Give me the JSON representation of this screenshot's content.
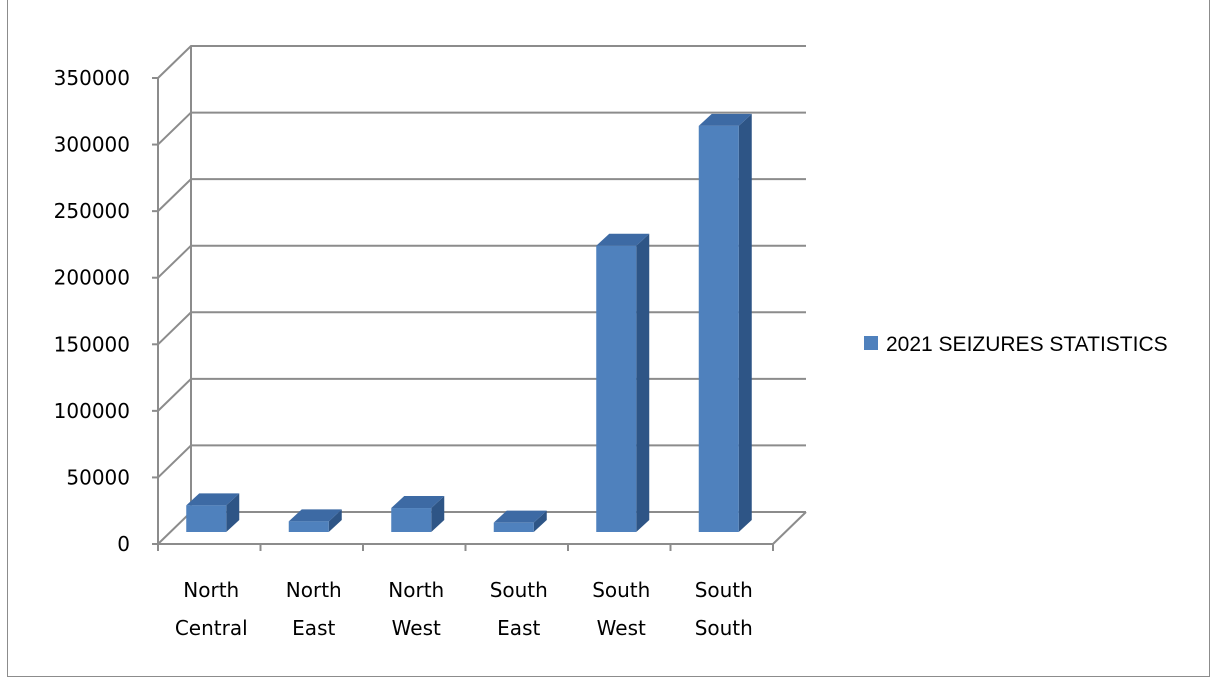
{
  "chart_data": {
    "type": "bar",
    "style": "3d-column",
    "categories": [
      [
        "North",
        "Central"
      ],
      [
        "North",
        "East"
      ],
      [
        "North",
        "West"
      ],
      [
        "South",
        "East"
      ],
      [
        "South",
        "West"
      ],
      [
        "South",
        "South"
      ]
    ],
    "series": [
      {
        "name": "2021 SEIZURES STATISTICS",
        "values": [
          20000,
          8000,
          18000,
          7000,
          215000,
          305000
        ],
        "color": "#4f81bd"
      }
    ],
    "yticks": [
      "0",
      "50000",
      "100000",
      "150000",
      "200000",
      "250000",
      "300000",
      "350000"
    ],
    "ylim": [
      0,
      350000
    ],
    "grid": true,
    "legend": "right"
  }
}
